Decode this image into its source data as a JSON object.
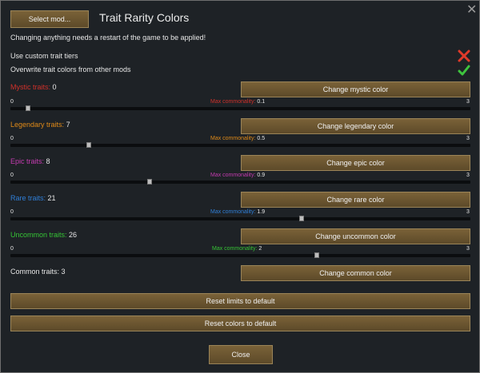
{
  "header": {
    "select_mod": "Select mod...",
    "title": "Trait Rarity Colors"
  },
  "notice": "Changing anything needs a restart of the game to be applied!",
  "options": [
    {
      "label": "Use custom trait tiers",
      "state": "off",
      "icon": "cross-icon",
      "color": "#e03a2a"
    },
    {
      "label": "Overwrite trait colors from other mods",
      "state": "on",
      "icon": "checkmark-icon",
      "color": "#3ec43e"
    }
  ],
  "tiers": [
    {
      "name": "Mystic traits:",
      "count": "0",
      "color": "#d0302a",
      "button": "Change mystic color",
      "max_label": "Max commonality:",
      "max_value": "0.1",
      "min": "0",
      "max": "3",
      "level": 0.1
    },
    {
      "name": "Legendary traits:",
      "count": "7",
      "color": "#e08a18",
      "button": "Change legendary color",
      "max_label": "Max commonality:",
      "max_value": "0.5",
      "min": "0",
      "max": "3",
      "level": 0.5
    },
    {
      "name": "Epic traits:",
      "count": "8",
      "color": "#c43bb0",
      "button": "Change epic color",
      "max_label": "Max commonality:",
      "max_value": "0.9",
      "min": "0",
      "max": "3",
      "level": 0.9
    },
    {
      "name": "Rare traits:",
      "count": "21",
      "color": "#2f7fd8",
      "button": "Change rare color",
      "max_label": "Max commonality:",
      "max_value": "1.9",
      "min": "0",
      "max": "3",
      "level": 1.9
    },
    {
      "name": "Uncommon traits:",
      "count": "26",
      "color": "#35c435",
      "button": "Change uncommon color",
      "max_label": "Max commonality:",
      "max_value": "2",
      "min": "0",
      "max": "3",
      "level": 2.0
    },
    {
      "name": "Common traits:",
      "count": "3",
      "color": "#e6e6e6",
      "button": "Change common color"
    }
  ],
  "footer": {
    "reset_limits": "Reset limits to default",
    "reset_colors": "Reset colors to default",
    "close": "Close"
  }
}
